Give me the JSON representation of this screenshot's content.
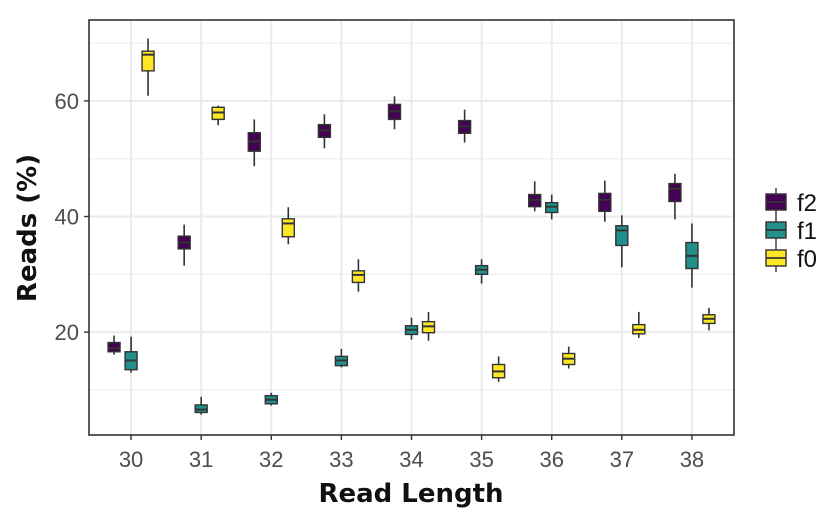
{
  "chart_data": {
    "type": "boxplot",
    "title": "",
    "xlabel": "Read Length",
    "ylabel": "Reads (%)",
    "categories": [
      "30",
      "31",
      "32",
      "33",
      "34",
      "35",
      "36",
      "37",
      "38"
    ],
    "ylim": [
      2.2,
      74.0
    ],
    "y_ticks": [
      20,
      40,
      60
    ],
    "y_minor_gridlines": [
      10,
      30,
      50,
      70
    ],
    "grid": true,
    "legend_position": "right",
    "legend_order": [
      "f2",
      "f1",
      "f0"
    ],
    "series": [
      {
        "name": "f2",
        "color": "#440154",
        "boxes": [
          {
            "x": "30",
            "whisker_low": 16.1,
            "q1": 16.6,
            "median": 17.2,
            "q3": 18.2,
            "whisker_high": 19.4
          },
          {
            "x": "31",
            "whisker_low": 31.5,
            "q1": 34.4,
            "median": 35.5,
            "q3": 36.6,
            "whisker_high": 38.6
          },
          {
            "x": "32",
            "whisker_low": 48.7,
            "q1": 51.3,
            "median": 53.0,
            "q3": 54.5,
            "whisker_high": 56.8
          },
          {
            "x": "33",
            "whisker_low": 51.8,
            "q1": 53.7,
            "median": 54.9,
            "q3": 55.9,
            "whisker_high": 57.7
          },
          {
            "x": "34",
            "whisker_low": 55.1,
            "q1": 56.8,
            "median": 58.2,
            "q3": 59.4,
            "whisker_high": 60.8
          },
          {
            "x": "35",
            "whisker_low": 52.8,
            "q1": 54.4,
            "median": 55.6,
            "q3": 56.6,
            "whisker_high": 58.5
          },
          {
            "x": "36",
            "whisker_low": 40.9,
            "q1": 41.7,
            "median": 42.9,
            "q3": 43.8,
            "whisker_high": 46.1
          },
          {
            "x": "37",
            "whisker_low": 39.1,
            "q1": 40.9,
            "median": 42.9,
            "q3": 44.0,
            "whisker_high": 46.2
          },
          {
            "x": "38",
            "whisker_low": 39.5,
            "q1": 42.6,
            "median": 44.8,
            "q3": 45.7,
            "whisker_high": 47.4
          }
        ]
      },
      {
        "name": "f1",
        "color": "#21908C",
        "boxes": [
          {
            "x": "30",
            "whisker_low": 13.0,
            "q1": 13.5,
            "median": 15.1,
            "q3": 16.6,
            "whisker_high": 19.2
          },
          {
            "x": "31",
            "whisker_low": 5.7,
            "q1": 6.1,
            "median": 6.6,
            "q3": 7.4,
            "whisker_high": 8.8
          },
          {
            "x": "32",
            "whisker_low": 7.3,
            "q1": 7.6,
            "median": 8.3,
            "q3": 9.0,
            "whisker_high": 9.5
          },
          {
            "x": "33",
            "whisker_low": 13.9,
            "q1": 14.2,
            "median": 15.1,
            "q3": 15.8,
            "whisker_high": 17.1
          },
          {
            "x": "34",
            "whisker_low": 18.7,
            "q1": 19.6,
            "median": 20.4,
            "q3": 21.1,
            "whisker_high": 22.5
          },
          {
            "x": "35",
            "whisker_low": 28.4,
            "q1": 30.0,
            "median": 30.8,
            "q3": 31.5,
            "whisker_high": 32.6
          },
          {
            "x": "36",
            "whisker_low": 39.5,
            "q1": 40.7,
            "median": 41.7,
            "q3": 42.4,
            "whisker_high": 43.8
          },
          {
            "x": "37",
            "whisker_low": 31.2,
            "q1": 35.0,
            "median": 37.6,
            "q3": 38.4,
            "whisker_high": 40.2
          },
          {
            "x": "38",
            "whisker_low": 27.7,
            "q1": 31.0,
            "median": 33.2,
            "q3": 35.5,
            "whisker_high": 38.8
          }
        ]
      },
      {
        "name": "f0",
        "color": "#FDE725",
        "boxes": [
          {
            "x": "30",
            "whisker_low": 60.9,
            "q1": 65.2,
            "median": 68.0,
            "q3": 68.6,
            "whisker_high": 70.8
          },
          {
            "x": "31",
            "whisker_low": 55.8,
            "q1": 56.8,
            "median": 58.0,
            "q3": 58.9,
            "whisker_high": 59.2
          },
          {
            "x": "32",
            "whisker_low": 35.2,
            "q1": 36.5,
            "median": 38.8,
            "q3": 39.6,
            "whisker_high": 41.6
          },
          {
            "x": "33",
            "whisker_low": 27.0,
            "q1": 28.6,
            "median": 29.9,
            "q3": 30.6,
            "whisker_high": 32.6
          },
          {
            "x": "34",
            "whisker_low": 18.5,
            "q1": 19.9,
            "median": 21.0,
            "q3": 21.8,
            "whisker_high": 23.5
          },
          {
            "x": "35",
            "whisker_low": 11.4,
            "q1": 12.1,
            "median": 13.2,
            "q3": 14.4,
            "whisker_high": 15.8
          },
          {
            "x": "36",
            "whisker_low": 13.7,
            "q1": 14.4,
            "median": 15.4,
            "q3": 16.3,
            "whisker_high": 17.5
          },
          {
            "x": "37",
            "whisker_low": 19.0,
            "q1": 19.7,
            "median": 20.4,
            "q3": 21.3,
            "whisker_high": 23.5
          },
          {
            "x": "38",
            "whisker_low": 20.3,
            "q1": 21.5,
            "median": 22.3,
            "q3": 23.0,
            "whisker_high": 24.2
          }
        ]
      }
    ]
  },
  "legend": {
    "items": [
      {
        "label": "f2",
        "color": "#440154"
      },
      {
        "label": "f1",
        "color": "#21908C"
      },
      {
        "label": "f0",
        "color": "#FDE725"
      }
    ]
  },
  "style": {
    "panel_border": "#333333",
    "grid_color": "#ebebeb",
    "box_outline": "#333333",
    "median_color": "#333333"
  }
}
